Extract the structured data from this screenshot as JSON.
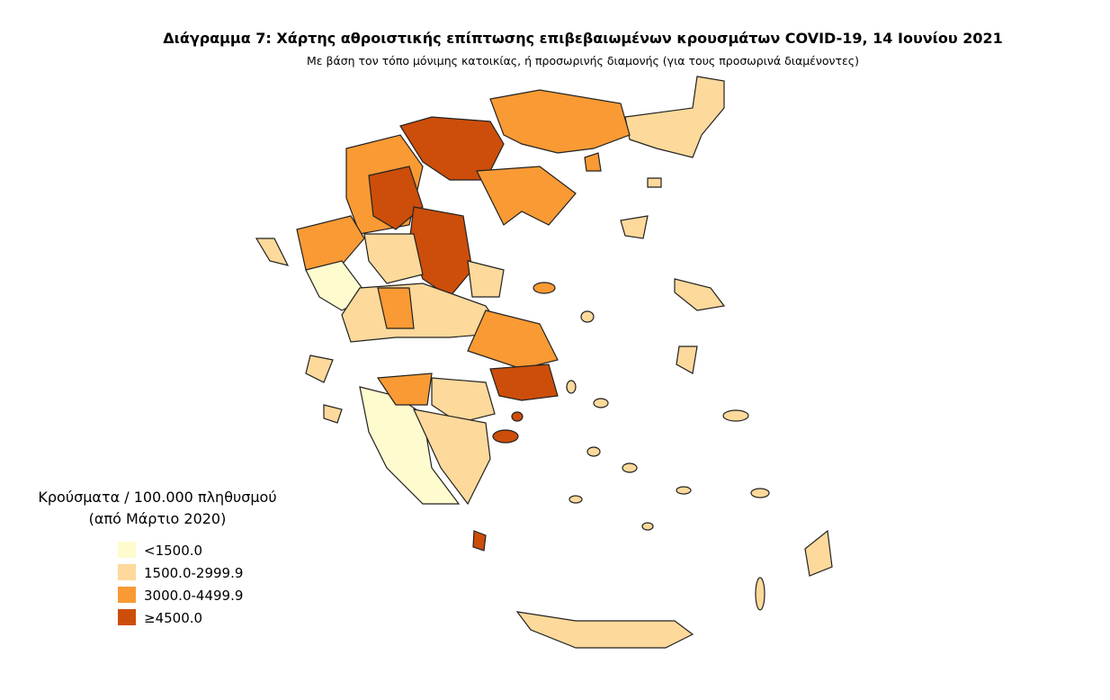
{
  "header": {
    "title": "Διάγραμμα 7: Χάρτης αθροιστικής επίπτωσης επιβεβαιωμένων κρουσμάτων COVID-19, 14 Ιουνίου 2021",
    "subtitle": "Με βάση τον τόπο μόνιμης κατοικίας, ή προσωρινής διαμονής (για τους προσωρινά διαμένοντες)"
  },
  "legend": {
    "title": [
      "Κρούσματα / 100.000 πληθυσμού",
      "(από Μάρτιο 2020)"
    ],
    "items": [
      {
        "label": "<1500.0",
        "color": "#fefbcf"
      },
      {
        "label": "1500.0-2999.9",
        "color": "#fdd99b"
      },
      {
        "label": "3000.0-4499.9",
        "color": "#f99a34"
      },
      {
        "label": "≥4500.0",
        "color": "#cc4e0a"
      }
    ]
  }
}
